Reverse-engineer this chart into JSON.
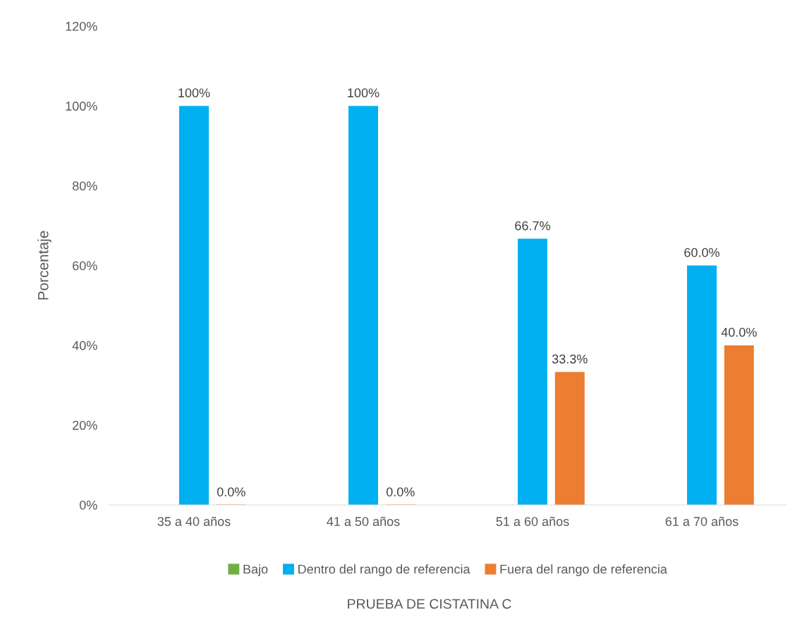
{
  "chart_data": {
    "type": "bar",
    "annotations": [
      "PRUEBA DE CISTATINA C"
    ],
    "ylabel": "Porcentaje",
    "categories": [
      "35 a 40 años",
      "41 a 50 años",
      "51 a 60 años",
      "61 a 70 años"
    ],
    "series": [
      {
        "name": "Bajo",
        "color": "#70ad47",
        "values": [
          null,
          null,
          null,
          null
        ]
      },
      {
        "name": "Dentro del rango de referencia",
        "color": "#00b0f0",
        "values": [
          100,
          100,
          66.7,
          60.0
        ],
        "value_labels": [
          "100%",
          "100%",
          "66.7%",
          "60.0%"
        ]
      },
      {
        "name": "Fuera del rango de referencia",
        "color": "#ed7d31",
        "values": [
          0.0,
          0.0,
          33.3,
          40.0
        ],
        "value_labels": [
          "0.0%",
          "0.0%",
          "33.3%",
          "40.0%"
        ]
      }
    ],
    "ylim": [
      0,
      120
    ],
    "yticks": [
      {
        "value": 0,
        "label": "0%"
      },
      {
        "value": 20,
        "label": "20%"
      },
      {
        "value": 40,
        "label": "40%"
      },
      {
        "value": 60,
        "label": "60%"
      },
      {
        "value": 80,
        "label": "80%"
      },
      {
        "value": 100,
        "label": "100%"
      },
      {
        "value": 120,
        "label": "120%"
      }
    ],
    "grid": false,
    "legend": "bottom"
  }
}
